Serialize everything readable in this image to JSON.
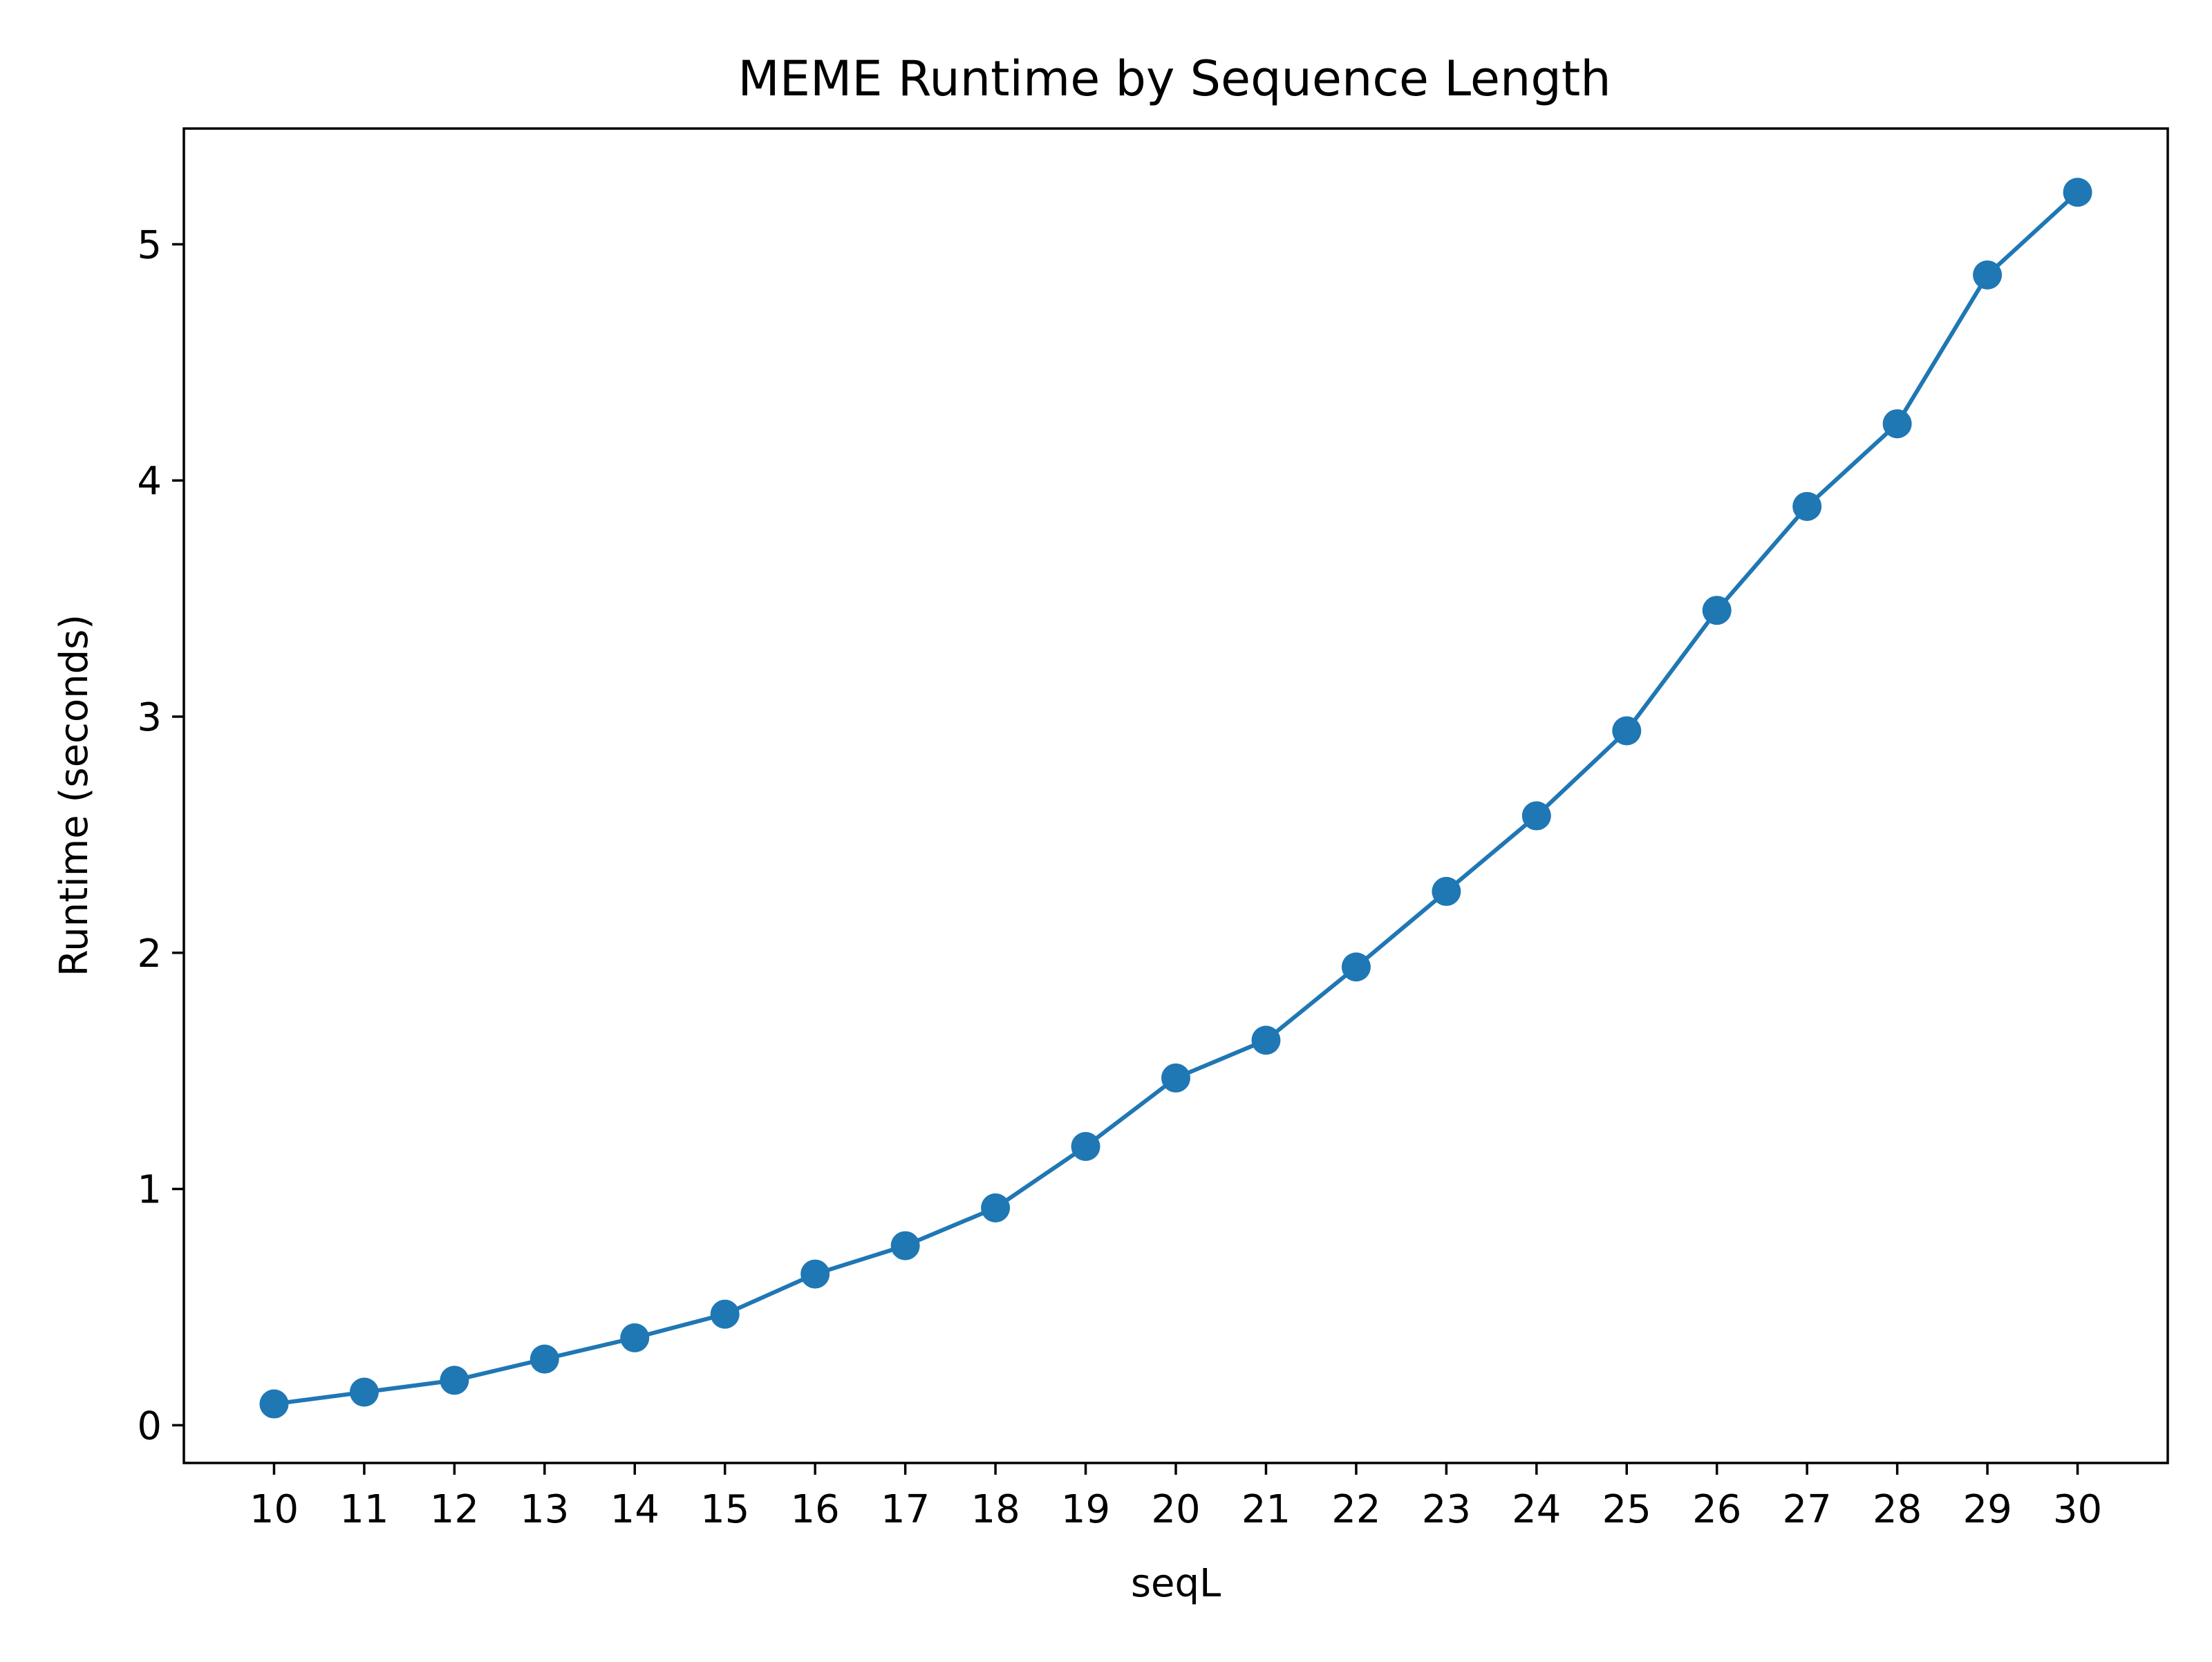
{
  "chart_data": {
    "type": "line",
    "title": "MEME Runtime by Sequence Length",
    "xlabel": "seqL",
    "ylabel": "Runtime (seconds)",
    "x": [
      10,
      11,
      12,
      13,
      14,
      15,
      16,
      17,
      18,
      19,
      20,
      21,
      22,
      23,
      24,
      25,
      26,
      27,
      28,
      29,
      30
    ],
    "series": [
      {
        "values": [
          0.09,
          0.14,
          0.19,
          0.28,
          0.37,
          0.47,
          0.64,
          0.76,
          0.92,
          1.18,
          1.47,
          1.63,
          1.94,
          2.26,
          2.58,
          2.94,
          3.45,
          3.89,
          4.24,
          4.87,
          5.22
        ],
        "color": "#1f77b4",
        "marker": "circle"
      }
    ],
    "xlim": [
      9,
      31
    ],
    "ylim": [
      -0.16,
      5.49
    ],
    "xticks": [
      "10",
      "11",
      "12",
      "13",
      "14",
      "15",
      "16",
      "17",
      "18",
      "19",
      "20",
      "21",
      "22",
      "23",
      "24",
      "25",
      "26",
      "27",
      "28",
      "29",
      "30"
    ],
    "yticks": [
      0,
      1,
      2,
      3,
      4,
      5
    ],
    "grid": false,
    "legend": "none"
  }
}
